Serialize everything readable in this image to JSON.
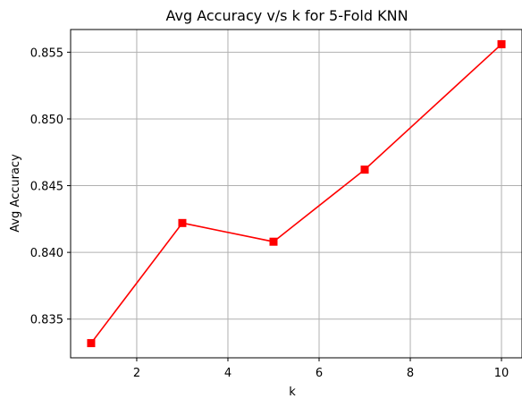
{
  "chart_data": {
    "type": "line",
    "title": "Avg Accuracy v/s k for 5-Fold KNN",
    "xlabel": "k",
    "ylabel": "Avg Accuracy",
    "x": [
      1,
      3,
      5,
      7,
      10
    ],
    "series": [
      {
        "values": [
          0.8332,
          0.8422,
          0.8408,
          0.8462,
          0.8556
        ],
        "color": "#ff0000",
        "marker": "square"
      }
    ],
    "xlim": [
      0.55,
      10.45
    ],
    "ylim": [
      0.8321,
      0.8567
    ],
    "xticks": [
      2,
      4,
      6,
      8,
      10
    ],
    "xtick_labels": [
      "2",
      "4",
      "6",
      "8",
      "10"
    ],
    "yticks": [
      0.835,
      0.84,
      0.845,
      0.85,
      0.855
    ],
    "ytick_labels": [
      "0.835",
      "0.840",
      "0.845",
      "0.850",
      "0.855"
    ],
    "grid": true
  }
}
